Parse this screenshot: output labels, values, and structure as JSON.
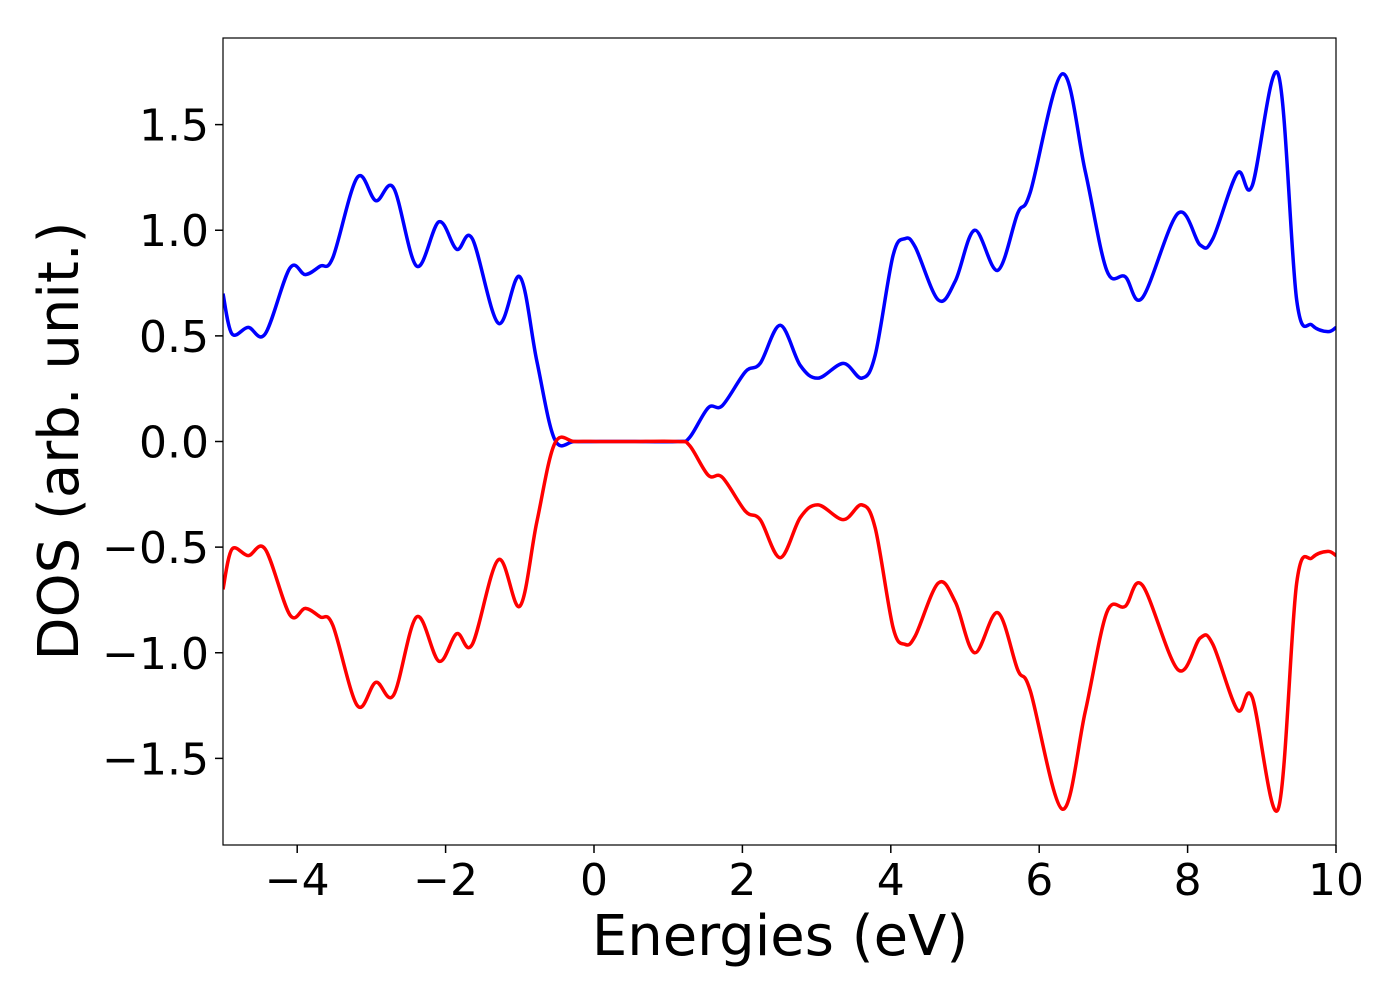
{
  "chart_data": {
    "type": "line",
    "xlabel": "Energies (eV)",
    "ylabel": "DOS (arb. unit.)",
    "x": [
      -5.0,
      -4.88,
      -4.66,
      -4.43,
      -4.1,
      -3.89,
      -3.69,
      -3.52,
      -3.19,
      -2.94,
      -2.7,
      -2.39,
      -2.09,
      -1.85,
      -1.64,
      -1.29,
      -1.0,
      -0.77,
      -0.53,
      -0.26,
      0.08,
      0.5,
      1.13,
      1.29,
      1.54,
      1.73,
      2.04,
      2.24,
      2.51,
      2.78,
      3.02,
      3.36,
      3.61,
      3.79,
      4.03,
      4.19,
      4.33,
      4.64,
      4.87,
      5.13,
      5.44,
      5.71,
      5.88,
      6.31,
      6.62,
      6.91,
      7.16,
      7.39,
      7.87,
      8.17,
      8.34,
      8.67,
      8.87,
      9.22,
      9.47,
      9.68,
      9.89,
      10.0
    ],
    "series": [
      {
        "color": "#0000ff",
        "values": [
          0.7,
          0.51,
          0.54,
          0.51,
          0.82,
          0.79,
          0.83,
          0.87,
          1.25,
          1.14,
          1.2,
          0.83,
          1.04,
          0.91,
          0.96,
          0.56,
          0.78,
          0.38,
          0.01,
          0,
          0,
          0,
          0,
          0.02,
          0.16,
          0.17,
          0.33,
          0.37,
          0.55,
          0.36,
          0.3,
          0.37,
          0.3,
          0.41,
          0.88,
          0.96,
          0.92,
          0.67,
          0.76,
          1.0,
          0.81,
          1.08,
          1.18,
          1.74,
          1.28,
          0.81,
          0.78,
          0.68,
          1.08,
          0.93,
          0.96,
          1.27,
          1.21,
          1.74,
          0.67,
          0.55,
          0.52,
          0.54
        ]
      },
      {
        "color": "#ff0000",
        "values": [
          -0.7,
          -0.51,
          -0.54,
          -0.51,
          -0.82,
          -0.79,
          -0.83,
          -0.87,
          -1.25,
          -1.14,
          -1.2,
          -0.83,
          -1.04,
          -0.91,
          -0.96,
          -0.56,
          -0.78,
          -0.38,
          -0.01,
          0,
          0,
          0,
          0,
          -0.02,
          -0.16,
          -0.17,
          -0.33,
          -0.37,
          -0.55,
          -0.36,
          -0.3,
          -0.37,
          -0.3,
          -0.41,
          -0.88,
          -0.96,
          -0.92,
          -0.67,
          -0.76,
          -1.0,
          -0.81,
          -1.08,
          -1.18,
          -1.74,
          -1.28,
          -0.81,
          -0.78,
          -0.68,
          -1.08,
          -0.93,
          -0.96,
          -1.27,
          -1.21,
          -1.74,
          -0.67,
          -0.55,
          -0.52,
          -0.54
        ]
      }
    ],
    "xlim": [
      -5,
      10
    ],
    "xticks": [
      {
        "value": -4,
        "label": "−4"
      },
      {
        "value": -2,
        "label": "−2"
      },
      0,
      2,
      4,
      6,
      8,
      10
    ],
    "ylim": [
      -1.91,
      1.91
    ],
    "yticks": [
      {
        "value": -1.5,
        "label": "−1.5"
      },
      {
        "value": -1.0,
        "label": "−1.0"
      },
      {
        "value": -0.5,
        "label": "−0.5"
      },
      {
        "value": 0,
        "label": "0.0"
      },
      0.5,
      {
        "value": 1.0,
        "label": "1.0"
      },
      1.5
    ]
  }
}
